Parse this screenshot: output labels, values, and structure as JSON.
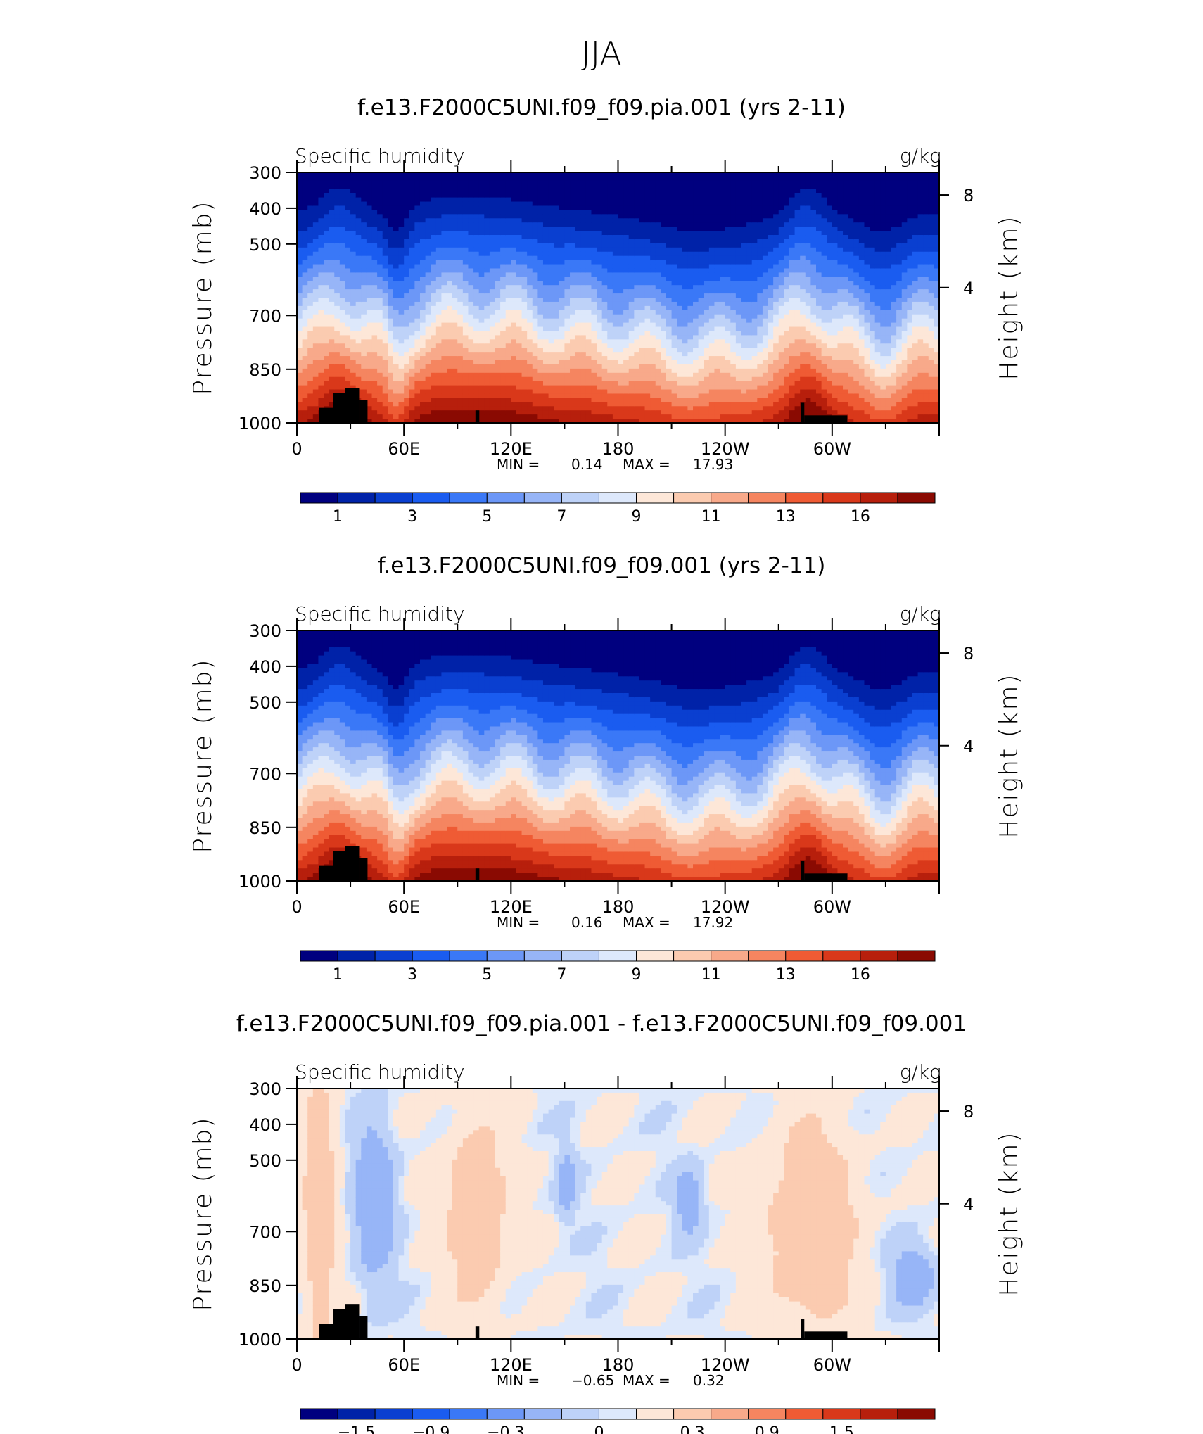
{
  "figure_title": "JJA",
  "chart_data": [
    {
      "type": "heatmap",
      "title": "f.e13.F2000C5UNI.f09_f09.pia.001 (yrs 2-11)",
      "left_string": "Specific humidity",
      "right_string": "g/kg",
      "ylabel": "Pressure (mb)",
      "y2label": "Height (km)",
      "yticks": [
        "300",
        "400",
        "500",
        "700",
        "850",
        "1000"
      ],
      "y2ticks": [
        "8",
        "4"
      ],
      "xticks": [
        "0",
        "60E",
        "120E",
        "180",
        "120W",
        "60W"
      ],
      "min_label": "MIN =",
      "min_value": "0.14",
      "max_label": "MAX =",
      "max_value": "17.93",
      "colorbar_labels": [
        "1",
        "3",
        "5",
        "7",
        "9",
        "11",
        "13",
        "16"
      ],
      "field": "specific_humidity"
    },
    {
      "type": "heatmap",
      "title": "f.e13.F2000C5UNI.f09_f09.001 (yrs 2-11)",
      "left_string": "Specific humidity",
      "right_string": "g/kg",
      "ylabel": "Pressure (mb)",
      "y2label": "Height (km)",
      "yticks": [
        "300",
        "400",
        "500",
        "700",
        "850",
        "1000"
      ],
      "y2ticks": [
        "8",
        "4"
      ],
      "xticks": [
        "0",
        "60E",
        "120E",
        "180",
        "120W",
        "60W"
      ],
      "min_label": "MIN =",
      "min_value": "0.16",
      "max_label": "MAX =",
      "max_value": "17.92",
      "colorbar_labels": [
        "1",
        "3",
        "5",
        "7",
        "9",
        "11",
        "13",
        "16"
      ],
      "field": "specific_humidity"
    },
    {
      "type": "heatmap",
      "title": "f.e13.F2000C5UNI.f09_f09.pia.001 - f.e13.F2000C5UNI.f09_f09.001",
      "left_string": "Specific humidity",
      "right_string": "g/kg",
      "ylabel": "Pressure (mb)",
      "y2label": "Height (km)",
      "yticks": [
        "300",
        "400",
        "500",
        "700",
        "850",
        "1000"
      ],
      "y2ticks": [
        "8",
        "4"
      ],
      "xticks": [
        "0",
        "60E",
        "120E",
        "180",
        "120W",
        "60W"
      ],
      "min_label": "MIN =",
      "min_value": "−0.65",
      "max_label": "MAX =",
      "max_value": "0.32",
      "colorbar_labels": [
        "−1.5",
        "−0.9",
        "−0.3",
        "0",
        "0.3",
        "0.9",
        "1.5"
      ],
      "field": "difference"
    }
  ],
  "palette": [
    "#00007f",
    "#0022a8",
    "#0a3fd0",
    "#1a5cf0",
    "#3a78f7",
    "#6c97f7",
    "#97b5f7",
    "#bed2f8",
    "#dde8fb",
    "#fde7d8",
    "#fbcbb0",
    "#f8a98a",
    "#f58560",
    "#ef5b34",
    "#d9381a",
    "#b71f0c",
    "#8a0a02"
  ],
  "topography_color": "#000000"
}
